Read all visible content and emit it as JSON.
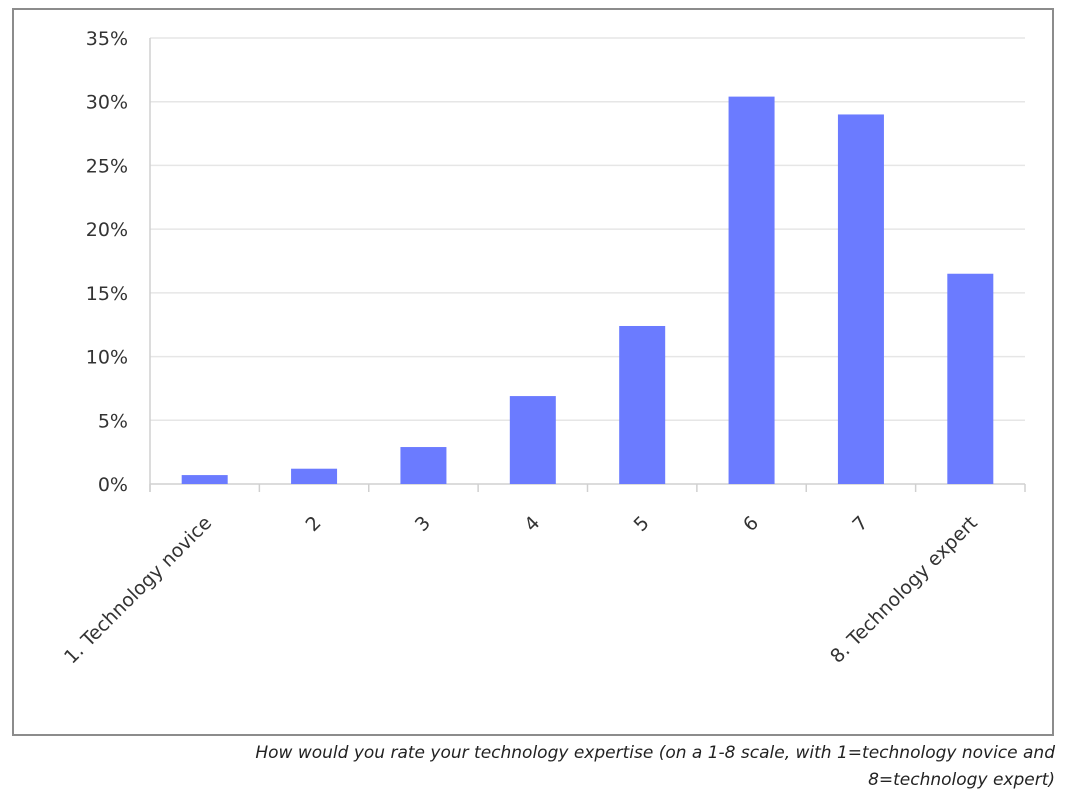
{
  "chart_data": {
    "type": "bar",
    "title": "",
    "xlabel": "",
    "ylabel": "",
    "categories": [
      "1. Technology novice",
      "2",
      "3",
      "4",
      "5",
      "6",
      "7",
      "8. Technology expert"
    ],
    "values": [
      0.7,
      1.2,
      2.9,
      6.9,
      12.4,
      30.4,
      29.0,
      16.5
    ],
    "yticks": [
      "0%",
      "5%",
      "10%",
      "15%",
      "20%",
      "25%",
      "30%",
      "35%"
    ],
    "ylim": [
      0,
      35
    ],
    "grid": true,
    "legend": "none",
    "bar_color": "#6b7bff",
    "grid_color": "#e6e6e6"
  },
  "caption": {
    "line1": "How would you rate your technology expertise (on a 1-8 scale, with 1=technology novice and",
    "line2": "8=technology expert)"
  }
}
